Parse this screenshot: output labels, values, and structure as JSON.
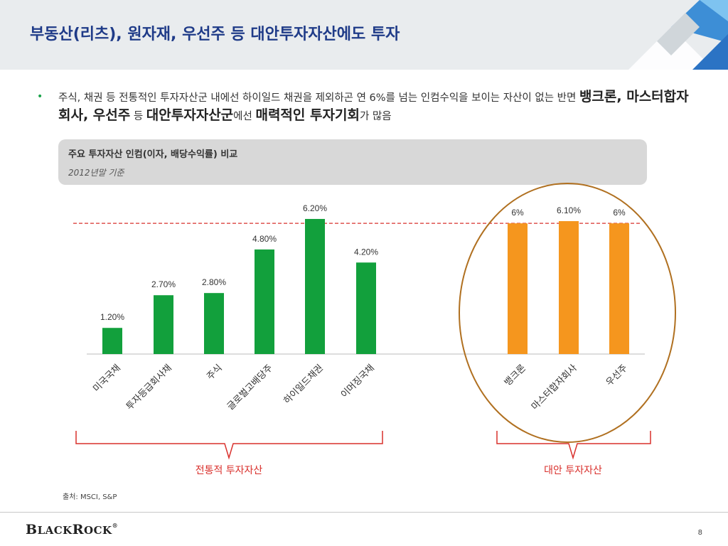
{
  "header": {
    "title": "부동산(리츠), 원자재, 우선주 등 대안투자자산에도 투자"
  },
  "bullet": {
    "part1": "주식, 채권 등 전통적인 투자자산군 내에선 하이일드 채권을 제외하곤 연 6%를 넘는 인컴수익을 보이는 자산이 없는 반면 ",
    "bold1": "뱅크론, 마스터합자회사, 우선주",
    "part2": " 등 ",
    "bold2": "대안투자자산군",
    "part3": "에선 ",
    "bold3": "매력적인 투자기회",
    "part4": "가 많음"
  },
  "chart_box": {
    "title": "주요 투자자산 인컴(이자, 배당수익률) 비교",
    "subtitle": "2012년말 기준"
  },
  "chart_data": {
    "type": "bar",
    "title": "주요 투자자산 인컴(이자, 배당수익률) 비교",
    "subtitle": "2012년말 기준",
    "categories": [
      "미국국채",
      "투자등급회사채",
      "주식",
      "글로벌고배당주",
      "하이일드채권",
      "이머징국채",
      "뱅크론",
      "마스터합자회사",
      "우선주"
    ],
    "values": [
      1.2,
      2.7,
      2.8,
      4.8,
      6.2,
      4.2,
      6.0,
      6.1,
      6.0
    ],
    "value_labels": [
      "1.20%",
      "2.70%",
      "2.80%",
      "4.80%",
      "6.20%",
      "4.20%",
      "6%",
      "6.10%",
      "6%"
    ],
    "unit": "%",
    "reference_line": 6.0,
    "groups": [
      {
        "label": "전통적 투자자산",
        "categories": [
          "미국국채",
          "투자등급회사채",
          "주식",
          "글로벌고배당주",
          "하이일드채권",
          "이머징국채"
        ],
        "color": "#12a03c"
      },
      {
        "label": "대안 투자자산",
        "categories": [
          "뱅크론",
          "마스터합자회사",
          "우선주"
        ],
        "color": "#f5961e"
      }
    ],
    "ylim": [
      0,
      7
    ],
    "grid": false,
    "colors": {
      "traditional": "#12a03c",
      "alternative": "#f5961e",
      "reference": "#d9302c",
      "bracket": "#d9302c",
      "circle": "#b07020"
    }
  },
  "source": "출처: MSCI, S&P",
  "logo": "BLACKROCK®",
  "page_number": "8"
}
